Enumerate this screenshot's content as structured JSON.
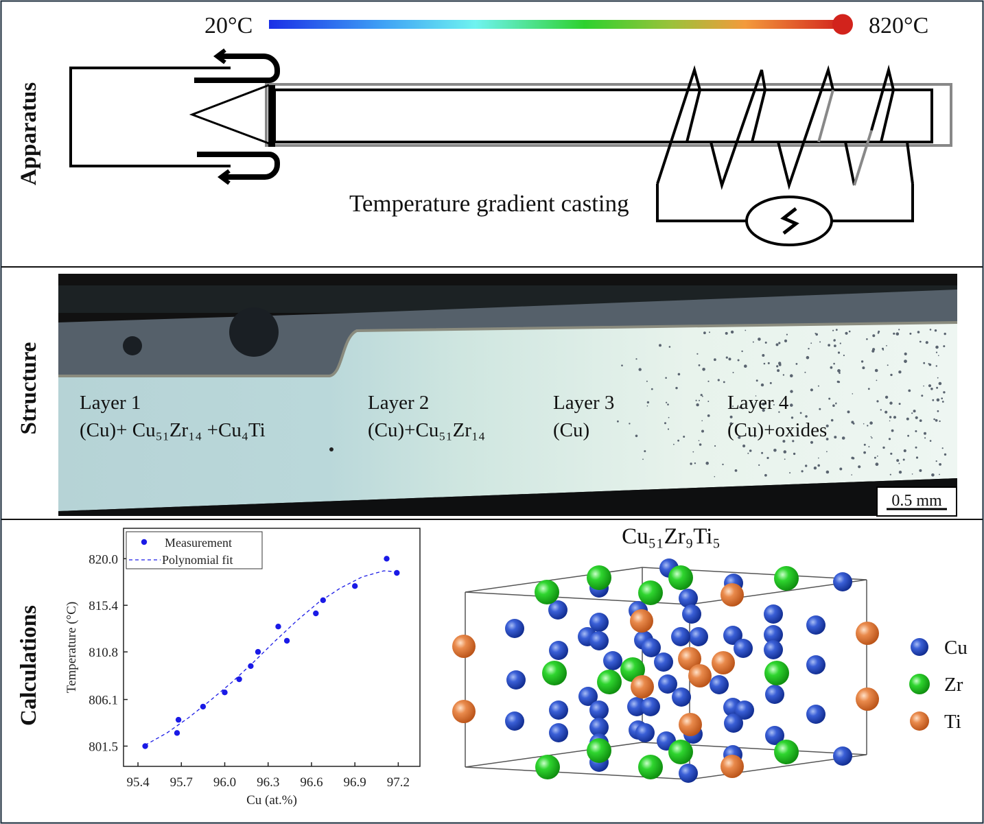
{
  "sections": {
    "apparatus": "Apparatus",
    "structure": "Structure",
    "calculations": "Calculations"
  },
  "apparatus": {
    "temp_low": "20°C",
    "temp_high": "820°C",
    "caption": "Temperature gradient casting",
    "colorbar_colors": [
      "#1a2fe6",
      "#3fa2f5",
      "#6ff3f0",
      "#2ed12e",
      "#9ac23a",
      "#f39a3c",
      "#d2231c"
    ],
    "icon_ac_source": "ac-source-icon"
  },
  "structure": {
    "layers": [
      {
        "title": "Layer 1",
        "phase": "(Cu)+ Cu₅₁Zr₁₄ +Cu₄Ti"
      },
      {
        "title": "Layer 2",
        "phase": "(Cu)+Cu₅₁Zr₁₄"
      },
      {
        "title": "Layer 3",
        "phase": "(Cu)"
      },
      {
        "title": "Layer 4",
        "phase": "(Cu)+oxides"
      }
    ],
    "scale_bar": "0.5 mm"
  },
  "chart_data": {
    "type": "scatter",
    "xlabel": "Cu (at.%)",
    "ylabel": "Temperature (°C)",
    "xlim": [
      95.3,
      97.35
    ],
    "ylim": [
      799.5,
      823.0
    ],
    "xticks": [
      95.4,
      95.7,
      96.0,
      96.3,
      96.6,
      96.9,
      97.2
    ],
    "xtick_labels": [
      "95.4",
      "95.7",
      "96.0",
      "96.3",
      "96.6",
      "96.9",
      "97.2"
    ],
    "yticks": [
      801.5,
      806.1,
      810.8,
      815.4,
      820.0
    ],
    "ytick_labels": [
      "801.5",
      "806.1",
      "810.8",
      "815.4",
      "820.0"
    ],
    "legend": [
      "Measurement",
      "Polynomial fit"
    ],
    "legend_position": "top-left",
    "series": [
      {
        "name": "Measurement",
        "x": [
          95.45,
          95.67,
          95.68,
          95.85,
          96.0,
          96.1,
          96.18,
          96.23,
          96.37,
          96.43,
          96.63,
          96.68,
          96.9,
          97.12,
          97.19
        ],
        "y": [
          801.5,
          802.8,
          804.1,
          805.4,
          806.8,
          808.1,
          809.4,
          810.8,
          813.3,
          811.9,
          814.6,
          815.9,
          817.3,
          820.0,
          818.6
        ]
      },
      {
        "name": "Polynomial fit",
        "x": [
          95.45,
          95.6,
          95.75,
          95.9,
          96.05,
          96.2,
          96.35,
          96.5,
          96.65,
          96.8,
          96.95,
          97.1,
          97.2
        ],
        "y": [
          801.6,
          802.8,
          804.3,
          806.0,
          807.8,
          809.8,
          811.9,
          813.9,
          815.7,
          817.1,
          818.2,
          818.8,
          818.7
        ]
      }
    ],
    "colors": {
      "points": "#1a1ae6",
      "fit": "#1a1ae6"
    }
  },
  "crystal": {
    "title": "Cu₅₁Zr₉Ti₅",
    "legend": [
      {
        "label": "Cu",
        "color": "#2448c8"
      },
      {
        "label": "Zr",
        "color": "#22cc22"
      },
      {
        "label": "Ti",
        "color": "#e2874a"
      }
    ]
  }
}
